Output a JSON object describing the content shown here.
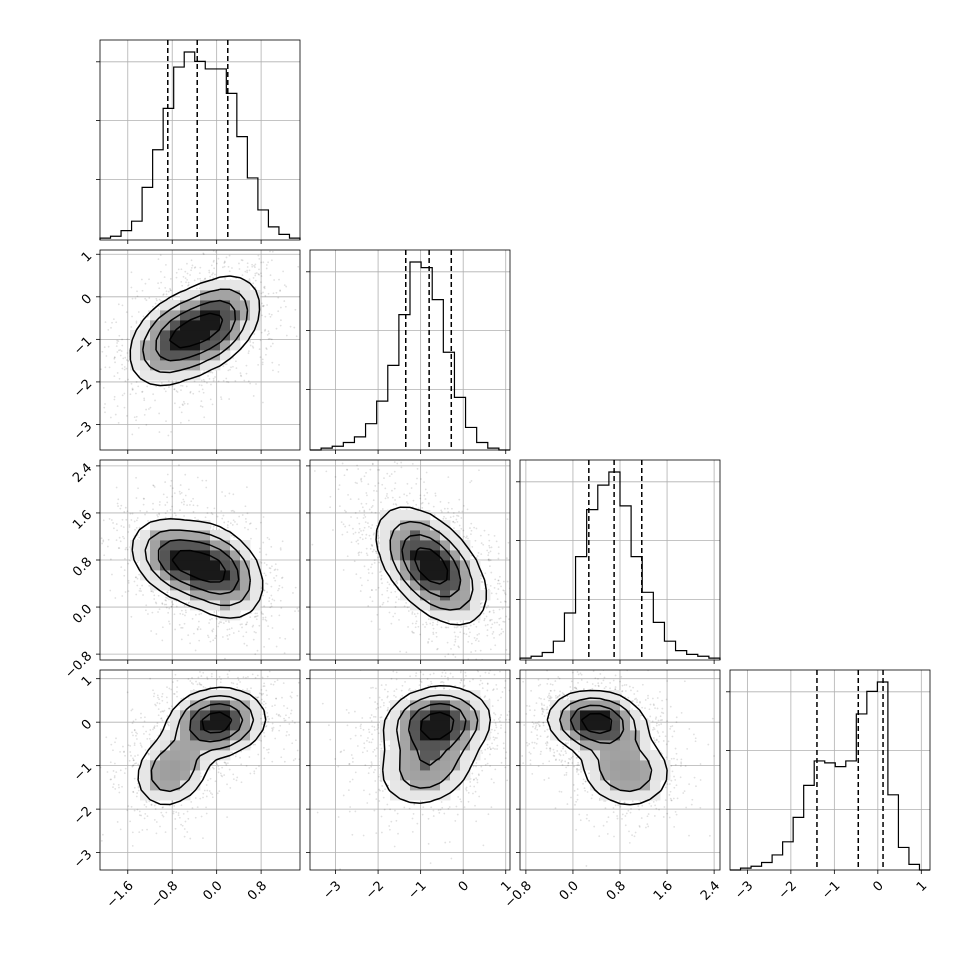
{
  "chart_data": {
    "type": "corner",
    "title": "",
    "parameters": [
      {
        "label": "",
        "range": [
          -2.1,
          1.5
        ],
        "ticks": [
          -1.6,
          -0.8,
          0.0,
          0.8
        ],
        "tick_labels": [
          "−1.6",
          "−0.8",
          "0.0",
          "0.8"
        ],
        "quantiles": [
          -0.88,
          -0.35,
          0.2
        ]
      },
      {
        "label": "",
        "range": [
          -3.6,
          1.1
        ],
        "ticks": [
          -3,
          -2,
          -1,
          0,
          1
        ],
        "tick_labels": [
          "−3",
          "−2",
          "−1",
          "0",
          "1"
        ],
        "quantiles": [
          -1.35,
          -0.8,
          -0.28
        ]
      },
      {
        "label": "",
        "range": [
          -0.9,
          2.5
        ],
        "ticks": [
          -0.8,
          0.0,
          0.8,
          1.6,
          2.4
        ],
        "tick_labels": [
          "−0.8",
          "0.0",
          "0.8",
          "1.6",
          "2.4"
        ],
        "quantiles": [
          0.27,
          0.7,
          1.17
        ]
      },
      {
        "label": "",
        "range": [
          -3.4,
          1.2
        ],
        "ticks": [
          -3,
          -2,
          -1,
          0,
          1
        ],
        "tick_labels": [
          "−3",
          "−2",
          "−1",
          "0",
          "1"
        ],
        "quantiles": [
          -1.4,
          -0.45,
          0.12
        ]
      }
    ],
    "histograms": [
      [
        0.01,
        0.02,
        0.05,
        0.1,
        0.28,
        0.48,
        0.7,
        0.92,
        1.0,
        0.95,
        0.91,
        0.91,
        0.78,
        0.55,
        0.33,
        0.16,
        0.07,
        0.03,
        0.01
      ],
      [
        0.0,
        0.01,
        0.02,
        0.04,
        0.07,
        0.14,
        0.26,
        0.45,
        0.72,
        1.0,
        0.97,
        0.8,
        0.52,
        0.28,
        0.12,
        0.04,
        0.01,
        0.0
      ],
      [
        0.01,
        0.02,
        0.04,
        0.1,
        0.25,
        0.55,
        0.8,
        0.93,
        1.0,
        0.82,
        0.55,
        0.36,
        0.2,
        0.1,
        0.05,
        0.03,
        0.02,
        0.01
      ],
      [
        0.0,
        0.01,
        0.02,
        0.04,
        0.08,
        0.15,
        0.28,
        0.45,
        0.58,
        0.57,
        0.55,
        0.58,
        0.83,
        0.95,
        1.0,
        0.4,
        0.12,
        0.03,
        0.0
      ]
    ],
    "pairs": [
      {
        "x": 0,
        "y": 1,
        "modes": [
          {
            "mx": -0.75,
            "my": -1.0,
            "sx": 0.42,
            "sy": 0.55,
            "rho": 0.35,
            "w": 0.5
          },
          {
            "mx": 0.0,
            "my": -0.6,
            "sx": 0.4,
            "sy": 0.55,
            "rho": 0.35,
            "w": 0.5
          }
        ]
      },
      {
        "x": 0,
        "y": 2,
        "modes": [
          {
            "mx": -0.7,
            "my": 0.8,
            "sx": 0.42,
            "sy": 0.35,
            "rho": -0.3,
            "w": 0.5
          },
          {
            "mx": 0.05,
            "my": 0.6,
            "sx": 0.4,
            "sy": 0.4,
            "rho": -0.3,
            "w": 0.5
          }
        ]
      },
      {
        "x": 1,
        "y": 2,
        "modes": [
          {
            "mx": -0.75,
            "my": 0.7,
            "sx": 0.62,
            "sy": 0.48,
            "rho": -0.5,
            "w": 1.0
          }
        ]
      },
      {
        "x": 0,
        "y": 3,
        "modes": [
          {
            "mx": -0.8,
            "my": -1.1,
            "sx": 0.35,
            "sy": 0.45,
            "rho": 0.2,
            "w": 0.35
          },
          {
            "mx": 0.0,
            "my": 0.0,
            "sx": 0.42,
            "sy": 0.38,
            "rho": 0.1,
            "w": 0.65
          }
        ]
      },
      {
        "x": 1,
        "y": 3,
        "modes": [
          {
            "mx": -0.85,
            "my": -1.0,
            "sx": 0.6,
            "sy": 0.5,
            "rho": 0.2,
            "w": 0.35
          },
          {
            "mx": -0.6,
            "my": 0.0,
            "sx": 0.6,
            "sy": 0.4,
            "rho": 0.1,
            "w": 0.65
          }
        ]
      },
      {
        "x": 2,
        "y": 3,
        "modes": [
          {
            "mx": 0.4,
            "my": 0.0,
            "sx": 0.4,
            "sy": 0.35,
            "rho": -0.1,
            "w": 0.65
          },
          {
            "mx": 0.9,
            "my": -1.1,
            "sx": 0.4,
            "sy": 0.45,
            "rho": -0.1,
            "w": 0.35
          }
        ]
      }
    ],
    "contour_levels": [
      0.12,
      0.3,
      0.55,
      0.82
    ],
    "grid": true,
    "legend": "none"
  }
}
